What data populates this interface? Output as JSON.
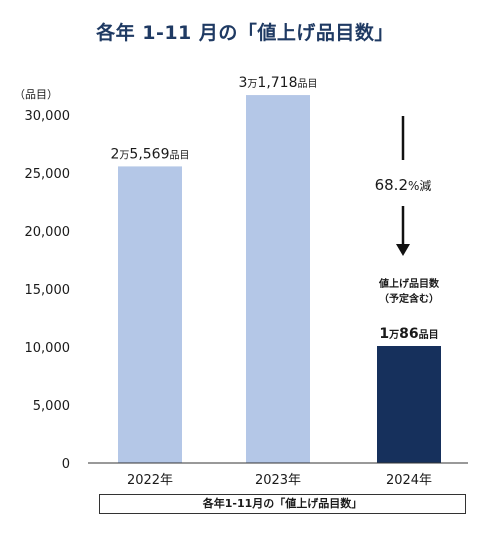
{
  "title": "各年 1-11 月の「値上げ品目数」",
  "caption": "各年1-11月の「値上げ品目数」",
  "colors": {
    "title": "#1f3a63",
    "bar_light": "#b4c7e7",
    "bar_dark": "#16305c",
    "axis": "#333333"
  },
  "chart_data": {
    "type": "bar",
    "title": "各年 1-11 月の「値上げ品目数」",
    "ylabel": "（品目）",
    "xlabel": "各年1-11月の「値上げ品目数」",
    "ylim": [
      0,
      30000
    ],
    "yticks": [
      "0",
      "5,000",
      "10,000",
      "15,000",
      "20,000",
      "25,000",
      "30,000"
    ],
    "categories": [
      "2022年",
      "2023年",
      "2024年"
    ],
    "values": [
      25569,
      31718,
      10086
    ],
    "data_labels": [
      {
        "num1": "2",
        "man": "万",
        "num2": "5,569",
        "unit": "品目"
      },
      {
        "num1": "3",
        "man": "万",
        "num2": "1,718",
        "unit": "品目"
      },
      {
        "num1": "1",
        "man": "万",
        "num2": "86",
        "unit": "品目"
      }
    ],
    "annotation_2024": {
      "line1": "値上げ品目数",
      "line2": "（予定含む）"
    },
    "change_label": {
      "num": "68.2",
      "suffix": "%減"
    }
  }
}
